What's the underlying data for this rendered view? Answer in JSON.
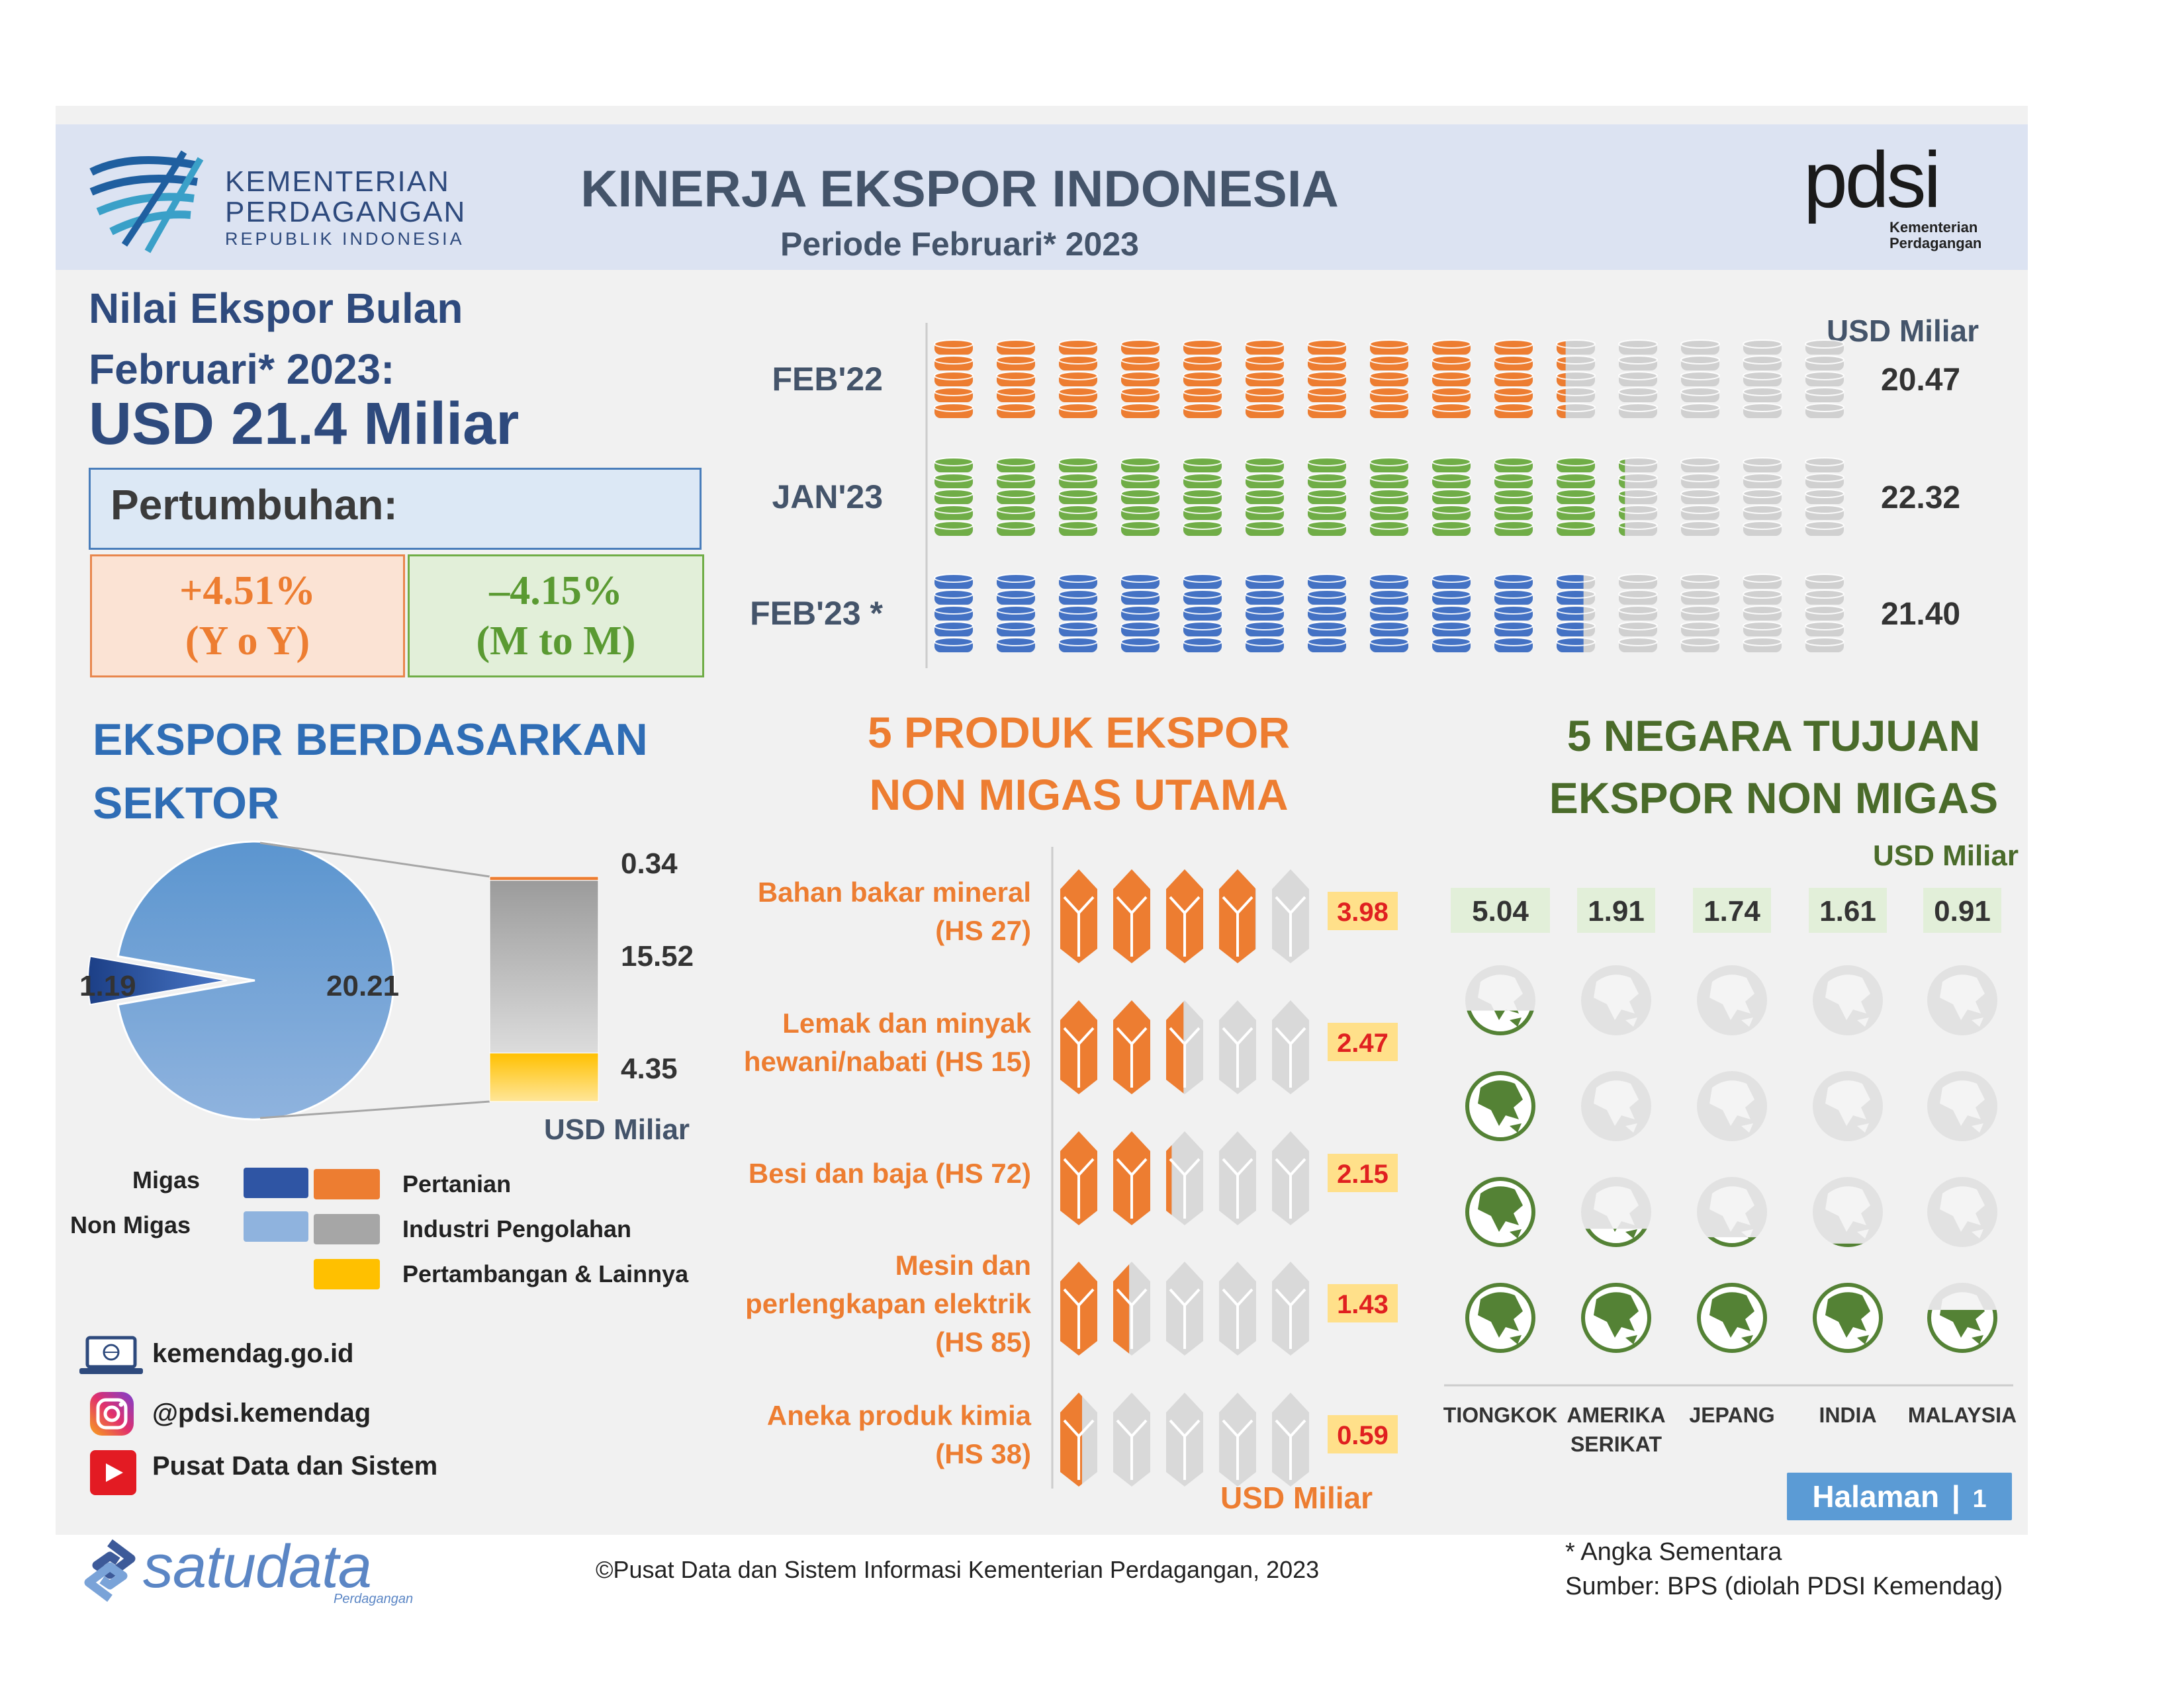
{
  "header": {
    "ministry_line1": "KEMENTERIAN",
    "ministry_line2": "PERDAGANGAN",
    "ministry_line3": "REPUBLIK INDONESIA",
    "title": "KINERJA EKSPOR INDONESIA",
    "subtitle": "Periode Februari* 2023",
    "pdsi_logo": "pdsi",
    "pdsi_sub1": "Kementerian",
    "pdsi_sub2": "Perdagangan"
  },
  "summary": {
    "heading_line1": "Nilai Ekspor Bulan",
    "heading_line2": "Februari* 2023:",
    "value": "USD 21.4 Miliar",
    "growth_label": "Pertumbuhan:",
    "yoy_value": "+4.51%",
    "yoy_label": "(Y o Y)",
    "mtm_value": "–4.15%",
    "mtm_label": "(M to M)"
  },
  "colors": {
    "orange": "#ed7d31",
    "green": "#70ad47",
    "blue": "#4472c4",
    "grey": "#d0d0d0",
    "navy": "#2e4a7d",
    "dark_green": "#4a6b2a",
    "red_value": "#e02020",
    "yellow_label": "#ffe08a"
  },
  "icons": {
    "coin_stack": "coin-stack-icon",
    "bundle": "product-bundle-icon",
    "globe": "globe-icon",
    "laptop": "laptop-icon",
    "instagram": "instagram-icon",
    "youtube": "youtube-icon"
  },
  "chart_data": [
    {
      "type": "bar",
      "unit": "USD Miliar",
      "categories": [
        "FEB'22",
        "JAN'23",
        "FEB'23 *"
      ],
      "values": [
        20.47,
        22.32,
        21.4
      ],
      "value_labels": [
        "20.47",
        "22.32",
        "21.40"
      ],
      "icons_total": 15,
      "icon_colors": [
        "#ed7d31",
        "#70ad47",
        "#4472c4"
      ]
    },
    {
      "type": "pie",
      "title_line1": "EKSPOR BERDASARKAN",
      "title_line2": "SEKTOR",
      "slices": [
        {
          "name": "Migas",
          "value": 1.19,
          "label": "1.19",
          "color": "#2f55a4"
        },
        {
          "name": "Non Migas",
          "value": 20.21,
          "label": "20.21",
          "color": "#8fb3de"
        }
      ],
      "breakdown_of": "Non Migas",
      "breakdown": [
        {
          "name": "Pertanian",
          "value": 0.34,
          "label": "0.34",
          "color": "#ed7d31"
        },
        {
          "name": "Industri Pengolahan",
          "value": 15.52,
          "label": "15.52",
          "color": "#a6a6a6"
        },
        {
          "name": "Pertambangan & Lainnya",
          "value": 4.35,
          "label": "4.35",
          "color": "#ffc000"
        }
      ],
      "unit": "USD Miliar"
    },
    {
      "type": "bar",
      "title_line1": "5 PRODUK EKSPOR",
      "title_line2": "NON MIGAS UTAMA",
      "unit": "USD Miliar",
      "icons_total": 5,
      "items": [
        {
          "label_lines": [
            "Bahan bakar mineral",
            "(HS 27)"
          ],
          "value": 3.98,
          "value_label": "3.98"
        },
        {
          "label_lines": [
            "Lemak dan minyak",
            "hewani/nabati (HS 15)"
          ],
          "value": 2.47,
          "value_label": "2.47"
        },
        {
          "label_lines": [
            "Besi dan baja (HS 72)"
          ],
          "value": 2.15,
          "value_label": "2.15"
        },
        {
          "label_lines": [
            "Mesin dan",
            "perlengkapan elektrik",
            "(HS 85)"
          ],
          "value": 1.43,
          "value_label": "1.43"
        },
        {
          "label_lines": [
            "Aneka produk kimia",
            "(HS 38)"
          ],
          "value": 0.59,
          "value_label": "0.59"
        }
      ]
    },
    {
      "type": "bar",
      "title_line1": "5 NEGARA TUJUAN",
      "title_line2": "EKSPOR NON MIGAS",
      "unit": "USD Miliar",
      "icons_total": 4,
      "items": [
        {
          "country_lines": [
            "TIONGKOK"
          ],
          "value": 5.04,
          "value_label": "5.04"
        },
        {
          "country_lines": [
            "AMERIKA",
            "SERIKAT"
          ],
          "value": 1.91,
          "value_label": "1.91"
        },
        {
          "country_lines": [
            "JEPANG"
          ],
          "value": 1.74,
          "value_label": "1.74"
        },
        {
          "country_lines": [
            "INDIA"
          ],
          "value": 1.61,
          "value_label": "1.61"
        },
        {
          "country_lines": [
            "MALAYSIA"
          ],
          "value": 0.91,
          "value_label": "0.91"
        }
      ]
    }
  ],
  "legend": {
    "migas": "Migas",
    "non_migas": "Non Migas",
    "pertanian": "Pertanian",
    "industri": "Industri Pengolahan",
    "pertambangan": "Pertambangan & Lainnya"
  },
  "contacts": {
    "website": "kemendag.go.id",
    "instagram": "@pdsi.kemendag",
    "youtube": "Pusat Data dan Sistem"
  },
  "page": {
    "label": "Halaman",
    "number": "1"
  },
  "footer": {
    "satudata": "satudata",
    "satudata_sub": "Perdagangan",
    "copyright": "©Pusat Data dan Sistem Informasi Kementerian Perdagangan, 2023",
    "note": "* Angka Sementara",
    "source": "Sumber: BPS (diolah PDSI Kemendag)"
  }
}
